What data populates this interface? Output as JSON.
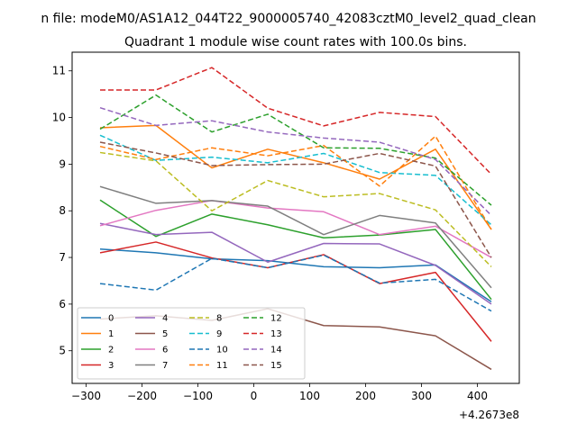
{
  "chart_data": {
    "type": "line",
    "suptitle": "n file: modeM0/AS1A12_044T22_9000005740_42083cztM0_level2_quad_clean",
    "title": "Quadrant 1 module wise count rates with 100.0s bins.",
    "xlabel": "",
    "ylabel": "",
    "offset_text": "+4.2673e8",
    "xlim": [
      -325,
      475
    ],
    "ylim": [
      4.3,
      11.4
    ],
    "x_ticks": [
      -300,
      -200,
      -100,
      0,
      100,
      200,
      300,
      400
    ],
    "x_tick_labels": [
      "−300",
      "−200",
      "−100",
      "0",
      "100",
      "200",
      "300",
      "400"
    ],
    "y_ticks": [
      5,
      6,
      7,
      8,
      9,
      10,
      11
    ],
    "y_tick_labels": [
      "5",
      "6",
      "7",
      "8",
      "9",
      "10",
      "11"
    ],
    "grid": false,
    "legend_placement": "lower-left",
    "legend_columns": 4,
    "x": [
      -275,
      -175,
      -75,
      25,
      125,
      225,
      325,
      425
    ],
    "series": [
      {
        "name": "0",
        "color": "#1f77b4",
        "dash": "solid",
        "values": [
          7.18,
          7.1,
          6.97,
          6.93,
          6.8,
          6.78,
          6.84,
          6.05
        ]
      },
      {
        "name": "1",
        "color": "#ff7f0e",
        "dash": "solid",
        "values": [
          9.78,
          9.83,
          8.92,
          9.32,
          9.03,
          8.68,
          9.32,
          7.6
        ]
      },
      {
        "name": "2",
        "color": "#2ca02c",
        "dash": "solid",
        "values": [
          8.23,
          7.45,
          7.93,
          7.7,
          7.42,
          7.48,
          7.6,
          6.1
        ]
      },
      {
        "name": "3",
        "color": "#d62728",
        "dash": "solid",
        "values": [
          7.1,
          7.33,
          6.99,
          6.78,
          7.06,
          6.44,
          6.68,
          5.2
        ]
      },
      {
        "name": "4",
        "color": "#9467bd",
        "dash": "solid",
        "values": [
          7.73,
          7.49,
          7.54,
          6.9,
          7.3,
          7.29,
          6.83,
          6.0
        ]
      },
      {
        "name": "5",
        "color": "#8c564b",
        "dash": "solid",
        "values": [
          5.68,
          5.75,
          5.65,
          5.9,
          5.54,
          5.51,
          5.32,
          4.6
        ]
      },
      {
        "name": "6",
        "color": "#e377c2",
        "dash": "solid",
        "values": [
          7.68,
          8.01,
          8.22,
          8.06,
          7.98,
          7.49,
          7.67,
          7.0
        ]
      },
      {
        "name": "7",
        "color": "#7f7f7f",
        "dash": "solid",
        "values": [
          8.52,
          8.16,
          8.22,
          8.1,
          7.49,
          7.9,
          7.74,
          6.35
        ]
      },
      {
        "name": "8",
        "color": "#bcbd22",
        "dash": "dashed",
        "values": [
          9.25,
          9.07,
          8.0,
          8.65,
          8.3,
          8.37,
          8.02,
          6.8
        ]
      },
      {
        "name": "9",
        "color": "#17becf",
        "dash": "dashed",
        "values": [
          9.62,
          9.08,
          9.15,
          9.03,
          9.23,
          8.82,
          8.76,
          7.7
        ]
      },
      {
        "name": "10",
        "color": "#1f77b4",
        "dash": "dashed",
        "values": [
          6.44,
          6.3,
          6.98,
          6.78,
          7.05,
          6.45,
          6.53,
          5.85
        ]
      },
      {
        "name": "11",
        "color": "#ff7f0e",
        "dash": "dashed",
        "values": [
          9.38,
          9.1,
          9.35,
          9.18,
          9.4,
          8.53,
          9.6,
          7.6
        ]
      },
      {
        "name": "12",
        "color": "#2ca02c",
        "dash": "dashed",
        "values": [
          9.75,
          10.48,
          9.69,
          10.07,
          9.35,
          9.34,
          9.13,
          8.12
        ]
      },
      {
        "name": "13",
        "color": "#d62728",
        "dash": "dashed",
        "values": [
          10.59,
          10.59,
          11.07,
          10.2,
          9.82,
          10.11,
          10.02,
          8.78
        ]
      },
      {
        "name": "14",
        "color": "#9467bd",
        "dash": "dashed",
        "values": [
          10.21,
          9.83,
          9.93,
          9.69,
          9.56,
          9.47,
          9.1,
          7.9
        ]
      },
      {
        "name": "15",
        "color": "#8c564b",
        "dash": "dashed",
        "values": [
          9.47,
          9.24,
          8.97,
          8.99,
          9.0,
          9.23,
          8.96,
          7.0
        ]
      }
    ]
  }
}
